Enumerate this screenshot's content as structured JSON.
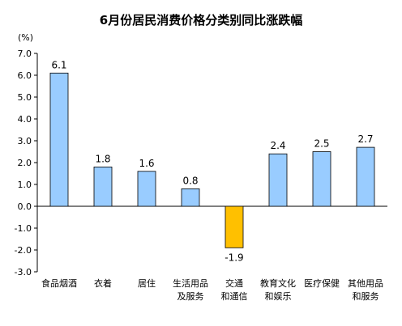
{
  "chart_data": {
    "type": "bar",
    "title": "6月份居民消费价格分类别同比涨跌幅",
    "unit_label": "(%)",
    "categories": [
      [
        "食品烟酒"
      ],
      [
        "衣着"
      ],
      [
        "居住"
      ],
      [
        "生活用品",
        "及服务"
      ],
      [
        "交通",
        "和通信"
      ],
      [
        "教育文化",
        "和娱乐"
      ],
      [
        "医疗保健"
      ],
      [
        "其他用品",
        "和服务"
      ]
    ],
    "values": [
      6.1,
      1.8,
      1.6,
      0.8,
      -1.9,
      2.4,
      2.5,
      2.7
    ],
    "value_labels": [
      "6.1",
      "1.8",
      "1.6",
      "0.8",
      "-1.9",
      "2.4",
      "2.5",
      "2.7"
    ],
    "ylim": [
      -3.0,
      7.0
    ],
    "yticks": [
      7.0,
      6.0,
      5.0,
      4.0,
      3.0,
      2.0,
      1.0,
      0.0,
      -1.0,
      -2.0,
      -3.0
    ],
    "ytick_labels": [
      "7.0",
      "6.0",
      "5.0",
      "4.0",
      "3.0",
      "2.0",
      "1.0",
      "0.0",
      "-1.0",
      "-2.0",
      "-3.0"
    ],
    "grid": false,
    "colors": {
      "positive_fill": "#99CCFF",
      "negative_fill": "#FFC000",
      "bar_stroke": "#000000",
      "axis": "#000000"
    }
  }
}
